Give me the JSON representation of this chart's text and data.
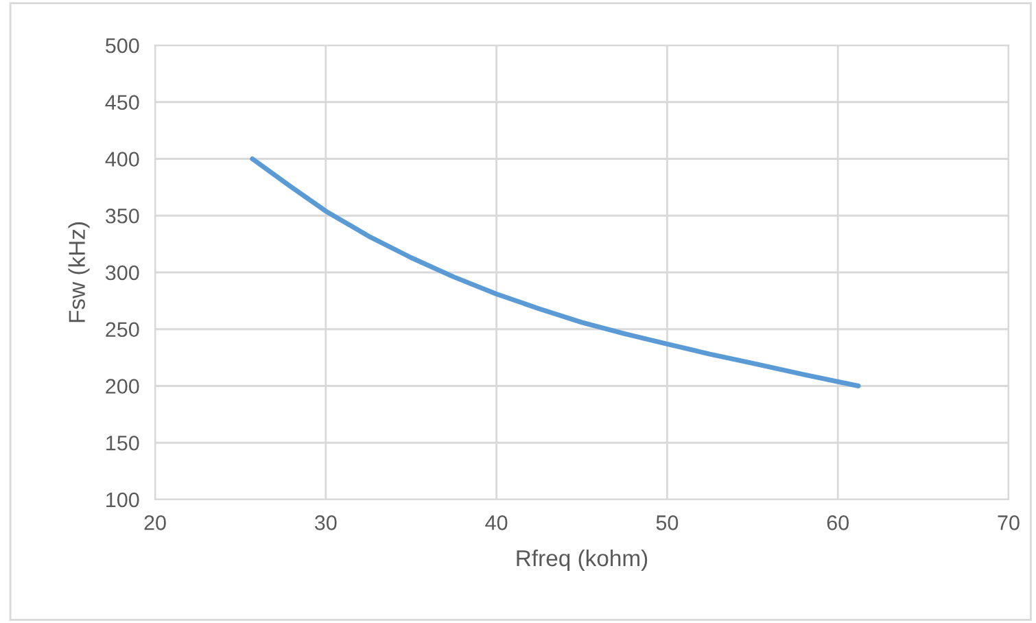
{
  "chart_data": {
    "type": "line",
    "xlabel": "Rfreq (kohm)",
    "ylabel": "Fsw (kHz)",
    "x": [
      25.7,
      28,
      30,
      32.5,
      35,
      37.5,
      40,
      42.5,
      45,
      47.5,
      50,
      52.5,
      55,
      58,
      61.2
    ],
    "series": [
      {
        "color": "#5b9bd5",
        "values": [
          400,
          375,
          354,
          332,
          313,
          296,
          281,
          268,
          256,
          246,
          237,
          228,
          220,
          210,
          200
        ]
      }
    ],
    "xlim": [
      20,
      70
    ],
    "xticks": [
      20,
      30,
      40,
      50,
      60,
      70
    ],
    "ylim": [
      100,
      500
    ],
    "yticks": [
      100,
      150,
      200,
      250,
      300,
      350,
      400,
      450,
      500
    ],
    "grid": true,
    "legend": false,
    "marker": "none",
    "line_style": "solid"
  }
}
